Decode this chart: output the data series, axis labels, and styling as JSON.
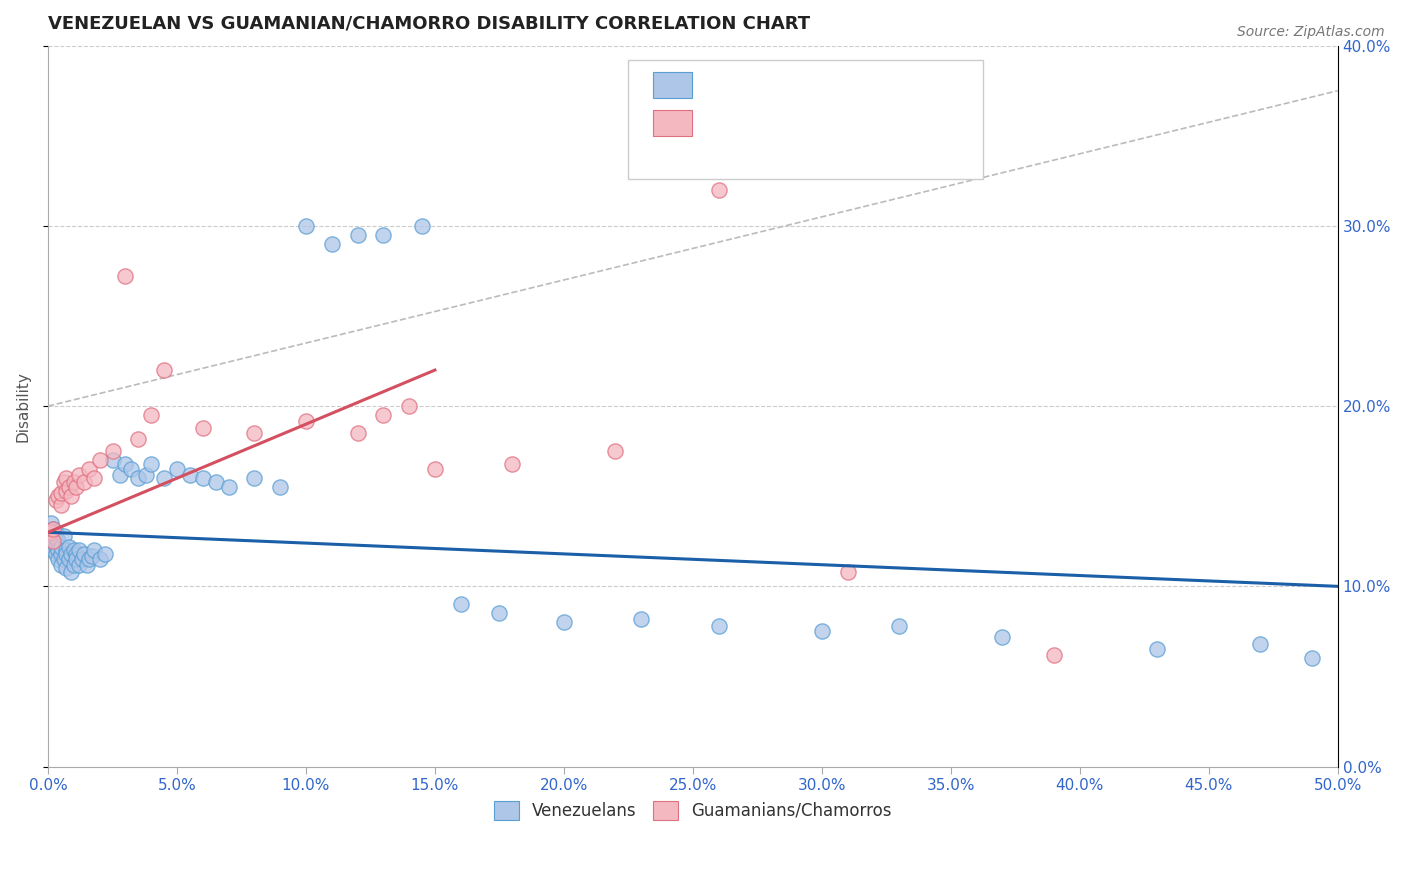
{
  "title": "VENEZUELAN VS GUAMANIAN/CHAMORRO DISABILITY CORRELATION CHART",
  "source": "Source: ZipAtlas.com",
  "ylabel": "Disability",
  "legend_label_blue": "Venezuelans",
  "legend_label_pink": "Guamanians/Chamorros",
  "blue_fill": "#aec6e8",
  "blue_edge": "#5a9fd4",
  "pink_fill": "#f4b8c1",
  "pink_edge": "#e07080",
  "blue_line_color": "#1a5fa8",
  "pink_line_color": "#d45060",
  "text_color": "#3366cc",
  "xlim": [
    0.0,
    0.5
  ],
  "ylim": [
    0.0,
    0.4
  ],
  "venezuelan_x": [
    0.001,
    0.001,
    0.001,
    0.002,
    0.002,
    0.002,
    0.002,
    0.003,
    0.003,
    0.003,
    0.003,
    0.004,
    0.004,
    0.004,
    0.005,
    0.005,
    0.005,
    0.006,
    0.006,
    0.007,
    0.007,
    0.007,
    0.008,
    0.008,
    0.009,
    0.009,
    0.01,
    0.01,
    0.011,
    0.011,
    0.012,
    0.012,
    0.013,
    0.014,
    0.015,
    0.016,
    0.017,
    0.018,
    0.02,
    0.022,
    0.025,
    0.028,
    0.03,
    0.032,
    0.035,
    0.038,
    0.04,
    0.045,
    0.05,
    0.055,
    0.06,
    0.065,
    0.07,
    0.08,
    0.09,
    0.1,
    0.11,
    0.12,
    0.13,
    0.145,
    0.16,
    0.175,
    0.2,
    0.23,
    0.26,
    0.3,
    0.33,
    0.37,
    0.43,
    0.47,
    0.49
  ],
  "venezuelan_y": [
    0.13,
    0.135,
    0.128,
    0.125,
    0.132,
    0.12,
    0.128,
    0.127,
    0.13,
    0.122,
    0.118,
    0.125,
    0.12,
    0.115,
    0.118,
    0.122,
    0.112,
    0.128,
    0.115,
    0.12,
    0.118,
    0.11,
    0.115,
    0.122,
    0.118,
    0.108,
    0.12,
    0.112,
    0.118,
    0.115,
    0.112,
    0.12,
    0.115,
    0.118,
    0.112,
    0.115,
    0.117,
    0.12,
    0.115,
    0.118,
    0.17,
    0.162,
    0.168,
    0.165,
    0.16,
    0.162,
    0.168,
    0.16,
    0.165,
    0.162,
    0.16,
    0.158,
    0.155,
    0.16,
    0.155,
    0.3,
    0.29,
    0.295,
    0.295,
    0.3,
    0.09,
    0.085,
    0.08,
    0.082,
    0.078,
    0.075,
    0.078,
    0.072,
    0.065,
    0.068,
    0.06
  ],
  "guamanian_x": [
    0.001,
    0.002,
    0.002,
    0.003,
    0.004,
    0.005,
    0.005,
    0.006,
    0.007,
    0.007,
    0.008,
    0.009,
    0.01,
    0.011,
    0.012,
    0.014,
    0.016,
    0.018,
    0.02,
    0.025,
    0.03,
    0.035,
    0.04,
    0.045,
    0.06,
    0.08,
    0.1,
    0.12,
    0.13,
    0.14,
    0.15,
    0.18,
    0.22,
    0.26,
    0.31,
    0.39
  ],
  "guamanian_y": [
    0.13,
    0.125,
    0.132,
    0.148,
    0.15,
    0.145,
    0.152,
    0.158,
    0.153,
    0.16,
    0.155,
    0.15,
    0.158,
    0.155,
    0.162,
    0.158,
    0.165,
    0.16,
    0.17,
    0.175,
    0.272,
    0.182,
    0.195,
    0.22,
    0.188,
    0.185,
    0.192,
    0.185,
    0.195,
    0.2,
    0.165,
    0.168,
    0.175,
    0.32,
    0.108,
    0.062
  ],
  "blue_trend": [
    0.0,
    0.5,
    0.13,
    0.1
  ],
  "pink_trend": [
    0.0,
    0.15,
    0.13,
    0.22
  ],
  "gray_dashed": [
    0.0,
    0.5,
    0.2,
    0.375
  ]
}
